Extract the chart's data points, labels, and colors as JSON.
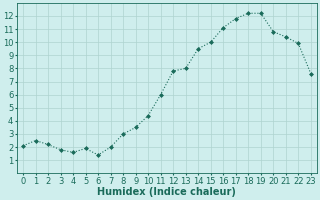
{
  "x": [
    0,
    1,
    2,
    3,
    4,
    5,
    6,
    7,
    8,
    9,
    10,
    11,
    12,
    13,
    14,
    15,
    16,
    17,
    18,
    19,
    20,
    21,
    22,
    23
  ],
  "y": [
    2.1,
    2.5,
    2.2,
    1.8,
    1.6,
    1.9,
    1.4,
    2.0,
    3.0,
    3.5,
    4.4,
    6.0,
    7.8,
    8.0,
    9.5,
    10.0,
    11.1,
    11.8,
    12.2,
    12.2,
    10.8,
    10.4,
    9.9,
    7.6
  ],
  "line_color": "#1a6b5a",
  "marker": "D",
  "marker_size": 2.0,
  "bg_color": "#cfeeed",
  "grid_color": "#aed4d0",
  "xlabel": "Humidex (Indice chaleur)",
  "xlim": [
    -0.5,
    23.5
  ],
  "ylim": [
    0,
    13
  ],
  "yticks": [
    1,
    2,
    3,
    4,
    5,
    6,
    7,
    8,
    9,
    10,
    11,
    12
  ],
  "xticks": [
    0,
    1,
    2,
    3,
    4,
    5,
    6,
    7,
    8,
    9,
    10,
    11,
    12,
    13,
    14,
    15,
    16,
    17,
    18,
    19,
    20,
    21,
    22,
    23
  ],
  "label_fontsize": 7,
  "tick_fontsize": 6
}
